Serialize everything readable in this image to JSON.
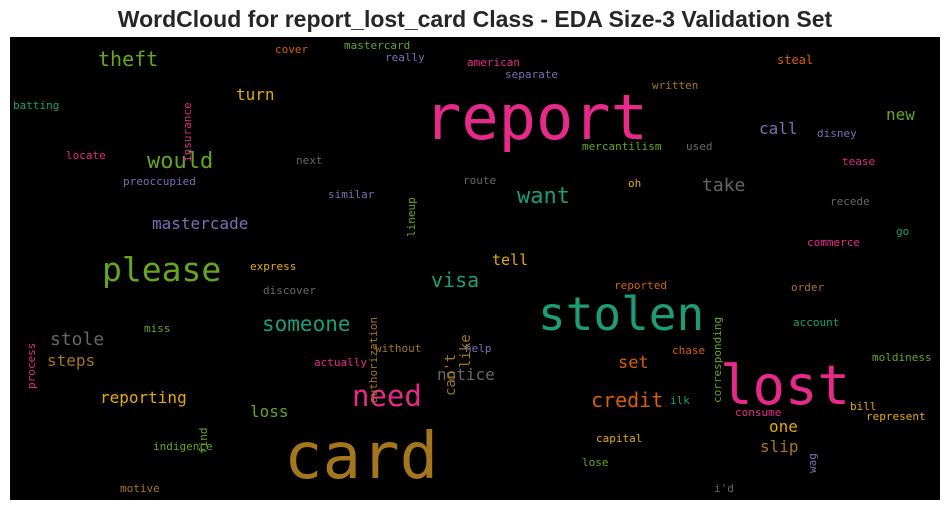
{
  "chart_data": {
    "type": "wordcloud",
    "title": "WordCloud for report_lost_card Class - EDA Size-3 Validation Set",
    "background": "#000000",
    "colormap": "Dark2",
    "words": [
      {
        "text": "report",
        "color": "#e7298a"
      },
      {
        "text": "card",
        "color": "#a6761d"
      },
      {
        "text": "stolen",
        "color": "#1b9e77"
      },
      {
        "text": "lost",
        "color": "#e7298a"
      },
      {
        "text": "please",
        "color": "#66a61e"
      },
      {
        "text": "need",
        "color": "#e7298a"
      },
      {
        "text": "someone",
        "color": "#1b9e77"
      },
      {
        "text": "want",
        "color": "#1b9e77"
      },
      {
        "text": "would",
        "color": "#66a61e"
      },
      {
        "text": "theft",
        "color": "#66a61e"
      },
      {
        "text": "credit",
        "color": "#d95f02"
      },
      {
        "text": "visa",
        "color": "#1b9e77"
      },
      {
        "text": "take",
        "color": "#666666"
      },
      {
        "text": "stole",
        "color": "#666666"
      },
      {
        "text": "mastercade",
        "color": "#7570b3"
      },
      {
        "text": "notice",
        "color": "#666666"
      },
      {
        "text": "reporting",
        "color": "#e6ab02"
      },
      {
        "text": "steps",
        "color": "#a6761d"
      },
      {
        "text": "turn",
        "color": "#e6ab02"
      },
      {
        "text": "call",
        "color": "#7570b3"
      },
      {
        "text": "new",
        "color": "#66a61e"
      },
      {
        "text": "set",
        "color": "#d95f02"
      },
      {
        "text": "loss",
        "color": "#66a61e"
      },
      {
        "text": "tell",
        "color": "#e6ab02"
      },
      {
        "text": "slip",
        "color": "#a6761d"
      },
      {
        "text": "one",
        "color": "#e6ab02"
      },
      {
        "text": "can't",
        "color": "#a6761d"
      },
      {
        "text": "like",
        "color": "#a6761d"
      },
      {
        "text": "cover",
        "color": "#d95f02"
      },
      {
        "text": "mastercard",
        "color": "#66a61e"
      },
      {
        "text": "really",
        "color": "#7570b3"
      },
      {
        "text": "american",
        "color": "#e7298a"
      },
      {
        "text": "separate",
        "color": "#7570b3"
      },
      {
        "text": "steal",
        "color": "#d95f02"
      },
      {
        "text": "written",
        "color": "#a6761d"
      },
      {
        "text": "insurance",
        "color": "#e7298a"
      },
      {
        "text": "batting",
        "color": "#1b9e77"
      },
      {
        "text": "locate",
        "color": "#e7298a"
      },
      {
        "text": "next",
        "color": "#666666"
      },
      {
        "text": "mercantilism",
        "color": "#66a61e"
      },
      {
        "text": "used",
        "color": "#666666"
      },
      {
        "text": "disney",
        "color": "#7570b3"
      },
      {
        "text": "tease",
        "color": "#e7298a"
      },
      {
        "text": "preoccupied",
        "color": "#7570b3"
      },
      {
        "text": "lineup",
        "color": "#66a61e"
      },
      {
        "text": "route",
        "color": "#666666"
      },
      {
        "text": "oh",
        "color": "#e6ab02"
      },
      {
        "text": "similar",
        "color": "#7570b3"
      },
      {
        "text": "recede",
        "color": "#666666"
      },
      {
        "text": "go",
        "color": "#1b9e77"
      },
      {
        "text": "commerce",
        "color": "#e7298a"
      },
      {
        "text": "authorization",
        "color": "#a6761d"
      },
      {
        "text": "express",
        "color": "#e6ab02"
      },
      {
        "text": "discover",
        "color": "#666666"
      },
      {
        "text": "corresponding",
        "color": "#66a61e"
      },
      {
        "text": "reported",
        "color": "#d95f02"
      },
      {
        "text": "order",
        "color": "#a6761d"
      },
      {
        "text": "process",
        "color": "#e7298a"
      },
      {
        "text": "miss",
        "color": "#66a61e"
      },
      {
        "text": "account",
        "color": "#1b9e77"
      },
      {
        "text": "without",
        "color": "#a6761d"
      },
      {
        "text": "help",
        "color": "#7570b3"
      },
      {
        "text": "chase",
        "color": "#d95f02"
      },
      {
        "text": "moldiness",
        "color": "#66a61e"
      },
      {
        "text": "actually",
        "color": "#e7298a"
      },
      {
        "text": "ilk",
        "color": "#1b9e77"
      },
      {
        "text": "bill",
        "color": "#e6ab02"
      },
      {
        "text": "consume",
        "color": "#e7298a"
      },
      {
        "text": "represent",
        "color": "#e6ab02"
      },
      {
        "text": "find",
        "color": "#66a61e"
      },
      {
        "text": "wag",
        "color": "#7570b3"
      },
      {
        "text": "indigence",
        "color": "#66a61e"
      },
      {
        "text": "capital",
        "color": "#e6ab02"
      },
      {
        "text": "lose",
        "color": "#66a61e"
      },
      {
        "text": "motive",
        "color": "#a6761d"
      },
      {
        "text": "i'd",
        "color": "#666666"
      }
    ]
  }
}
